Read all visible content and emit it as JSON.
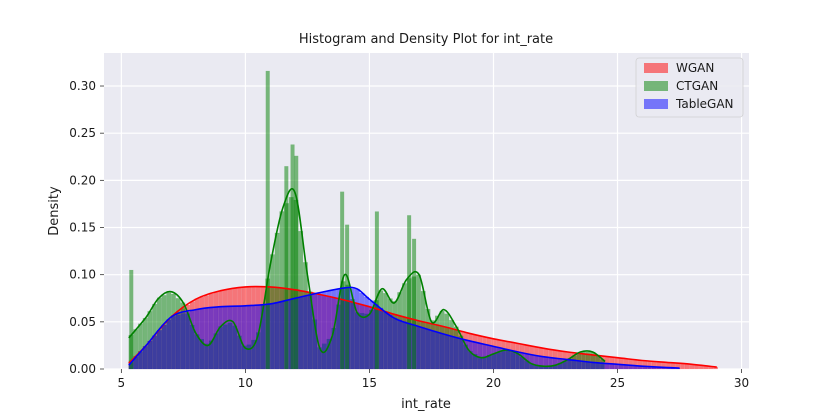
{
  "chart_data": {
    "type": "histogram-density",
    "title": "Histogram and Density Plot for int_rate",
    "xlabel": "int_rate",
    "ylabel": "Density",
    "xlim": [
      4.3,
      30.3
    ],
    "ylim": [
      0,
      0.335
    ],
    "xticks": [
      5,
      10,
      15,
      20,
      25,
      30
    ],
    "yticks": [
      0.0,
      0.05,
      0.1,
      0.15,
      0.2,
      0.25,
      0.3
    ],
    "ytick_labels": [
      "0.00",
      "0.05",
      "0.10",
      "0.15",
      "0.20",
      "0.25",
      "0.30"
    ],
    "grid": true,
    "legend_position": "top-right",
    "series": [
      {
        "name": "WGAN",
        "color": "#ff0000",
        "hist_range": [
          5.3,
          29.0
        ],
        "density": {
          "x": [
            5.3,
            6,
            7,
            8,
            9,
            10,
            11,
            12,
            13,
            14,
            15,
            16,
            17,
            18,
            19,
            20,
            21,
            22,
            23,
            24,
            25,
            26,
            27,
            28,
            29
          ],
          "y": [
            0.006,
            0.025,
            0.055,
            0.074,
            0.083,
            0.087,
            0.087,
            0.084,
            0.079,
            0.073,
            0.066,
            0.058,
            0.051,
            0.045,
            0.038,
            0.032,
            0.027,
            0.022,
            0.018,
            0.015,
            0.012,
            0.009,
            0.007,
            0.005,
            0.002
          ]
        }
      },
      {
        "name": "CTGAN",
        "color": "#008000",
        "hist_range": [
          5.3,
          24.5
        ],
        "density": {
          "x": [
            5.3,
            6,
            6.5,
            7,
            7.5,
            8,
            8.5,
            9,
            9.5,
            10,
            10.5,
            11,
            11.5,
            12,
            12.5,
            13,
            13.5,
            14,
            14.5,
            15,
            15.5,
            16,
            16.5,
            17,
            17.5,
            18,
            18.5,
            19,
            19.5,
            20,
            20.5,
            21,
            21.5,
            22,
            22.5,
            23,
            23.5,
            24,
            24.5
          ],
          "y": [
            0.033,
            0.055,
            0.075,
            0.082,
            0.07,
            0.038,
            0.025,
            0.045,
            0.05,
            0.022,
            0.035,
            0.11,
            0.17,
            0.187,
            0.1,
            0.022,
            0.035,
            0.1,
            0.06,
            0.058,
            0.085,
            0.07,
            0.095,
            0.1,
            0.05,
            0.063,
            0.045,
            0.02,
            0.012,
            0.016,
            0.02,
            0.016,
            0.006,
            0.003,
            0.004,
            0.01,
            0.018,
            0.018,
            0.008
          ]
        }
      },
      {
        "name": "TableGAN",
        "color": "#0000ff",
        "hist_range": [
          5.3,
          27.5
        ],
        "density": {
          "x": [
            5.3,
            6,
            7,
            8,
            9,
            10,
            11,
            12,
            13,
            14,
            14.5,
            15,
            16,
            17,
            18,
            19,
            20,
            21,
            22,
            23,
            24,
            25,
            26,
            27,
            27.5
          ],
          "y": [
            0.004,
            0.025,
            0.055,
            0.063,
            0.066,
            0.067,
            0.069,
            0.075,
            0.081,
            0.086,
            0.085,
            0.074,
            0.054,
            0.045,
            0.037,
            0.03,
            0.024,
            0.018,
            0.013,
            0.01,
            0.007,
            0.005,
            0.003,
            0.0015,
            0.001
          ]
        }
      }
    ],
    "ctgan_spike_bars": [
      {
        "x": 5.4,
        "y": 0.105
      },
      {
        "x": 10.9,
        "y": 0.316
      },
      {
        "x": 11.65,
        "y": 0.215
      },
      {
        "x": 11.9,
        "y": 0.238
      },
      {
        "x": 12.05,
        "y": 0.226
      },
      {
        "x": 13.9,
        "y": 0.188
      },
      {
        "x": 14.1,
        "y": 0.153
      },
      {
        "x": 15.3,
        "y": 0.167
      },
      {
        "x": 16.6,
        "y": 0.163
      },
      {
        "x": 16.8,
        "y": 0.138
      }
    ]
  }
}
